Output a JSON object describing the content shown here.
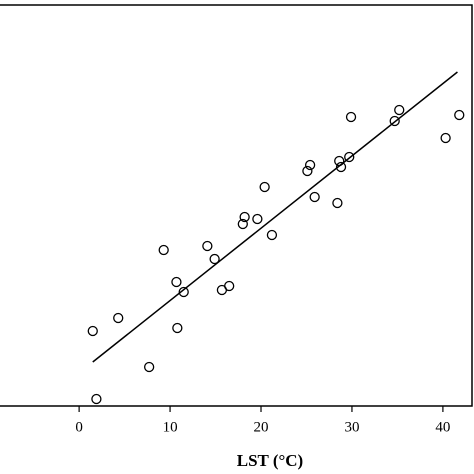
{
  "chart_data": {
    "type": "scatter",
    "x_label": "LST (°C)",
    "xlim": [
      -8.7,
      43.2
    ],
    "xticks": [
      0,
      10,
      20,
      30,
      40
    ],
    "ylim": [
      0,
      401
    ],
    "color": "#000000",
    "x": [
      1.5,
      1.9,
      4.3,
      7.7,
      9.3,
      10.7,
      10.8,
      11.5,
      14.1,
      14.9,
      15.7,
      16.5,
      18.0,
      18.2,
      19.6,
      20.4,
      21.2,
      25.1,
      25.4,
      25.9,
      28.4,
      28.6,
      28.8,
      29.7,
      29.9,
      34.7,
      35.2,
      40.3,
      41.8
    ],
    "values": [
      75,
      7,
      88,
      39,
      156,
      124,
      78,
      114,
      160,
      147,
      116,
      120,
      182,
      189,
      187,
      219,
      171,
      235,
      241,
      209,
      203,
      245,
      239,
      249,
      289,
      285,
      296,
      268,
      291
    ],
    "fit_line": {
      "x": [
        1.5,
        41.6
      ],
      "values": [
        44,
        334
      ]
    }
  }
}
